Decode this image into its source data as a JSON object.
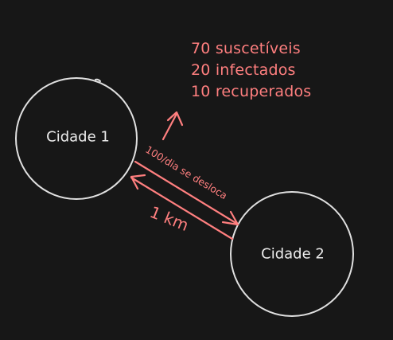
{
  "colors": {
    "background": "#171717",
    "stroke": "#e0e0e0",
    "accent": "#ff7f7f"
  },
  "cities": [
    {
      "label": "Cidade 1"
    },
    {
      "label": "Cidade 2"
    }
  ],
  "stats": {
    "susceptible": "70 suscetíveis",
    "infected": "20 infectados",
    "recovered": "10 recuperados"
  },
  "edge": {
    "flow_label": "100/dia se desloca",
    "distance_label": "1 km"
  }
}
